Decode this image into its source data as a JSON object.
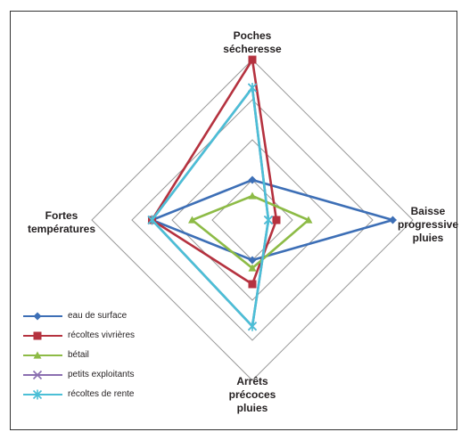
{
  "chart_data": {
    "type": "radar",
    "axes": [
      {
        "key": "top",
        "label": "Poches\nsécheresse"
      },
      {
        "key": "right",
        "label": "Baisse\nprogressive\npluies"
      },
      {
        "key": "bottom",
        "label": "Arrêts\nprécoces\npluies"
      },
      {
        "key": "left",
        "label": "Fortes\ntempératures"
      }
    ],
    "rings": 4,
    "max": 4,
    "series": [
      {
        "name": "eau de surface",
        "color": "#3d6fb6",
        "marker": "diamond",
        "values": {
          "top": 1,
          "right": 3.5,
          "bottom": 1,
          "left": 2.5
        }
      },
      {
        "name": "récoltes vivrières",
        "color": "#b5323f",
        "marker": "square",
        "values": {
          "top": 4,
          "right": 0.6,
          "bottom": 1.6,
          "left": 2.5
        }
      },
      {
        "name": "bétail",
        "color": "#8dbb46",
        "marker": "triangle",
        "values": {
          "top": 0.6,
          "right": 1.4,
          "bottom": 1.2,
          "left": 1.5
        }
      },
      {
        "name": "petits exploitants",
        "color": "#8b6fb0",
        "marker": "x",
        "values": {
          "top": 3.3,
          "right": 0.4,
          "bottom": 2.65,
          "left": 2.5
        }
      },
      {
        "name": "récoltes de rente",
        "color": "#4bbfd6",
        "marker": "asterisk",
        "values": {
          "top": 3.3,
          "right": 0.4,
          "bottom": 2.65,
          "left": 2.5
        }
      }
    ]
  }
}
